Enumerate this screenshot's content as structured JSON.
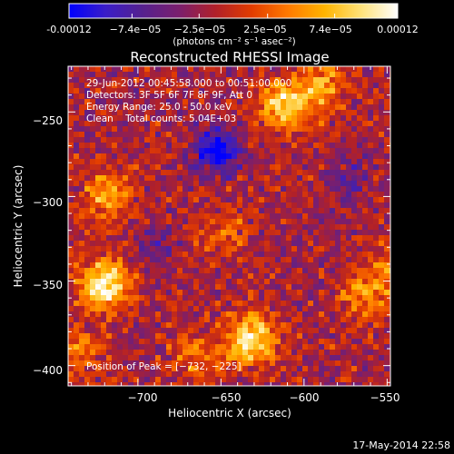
{
  "colorbar": {
    "tick_labels": [
      "-0.00012",
      "−7.4e−05",
      "−2.5e−05",
      "2.5e−05",
      "7.4e−05",
      "0.00012"
    ],
    "tick_values": [
      -0.00012,
      -7.4e-05,
      -2.5e-05,
      2.5e-05,
      7.4e-05,
      0.00012
    ],
    "range": [
      -0.00012,
      0.00012
    ],
    "units_label": "(photons cm⁻² s⁻¹ asec⁻²)",
    "colors": [
      "#0000ff",
      "#3a1dc8",
      "#55218f",
      "#7a1f6e",
      "#b0202a",
      "#e23c00",
      "#ff7a00",
      "#ffb400",
      "#ffe27a",
      "#ffffff"
    ]
  },
  "chart_data": {
    "type": "heatmap",
    "title": "Reconstructed RHESSI Image",
    "xlabel": "Heliocentric X (arcsec)",
    "ylabel": "Heliocentric Y (arcsec)",
    "xlim": [
      -742,
      -548
    ],
    "ylim": [
      -412,
      -223
    ],
    "x_ticks": [
      -700,
      -650,
      -600,
      -550
    ],
    "x_tick_labels": [
      "−700",
      "−650",
      "−600",
      "−550"
    ],
    "y_ticks": [
      -250,
      -300,
      -350,
      -400
    ],
    "y_tick_labels": [
      "−250",
      "−300",
      "−350",
      "−400"
    ],
    "grid": false,
    "hot_spots": [
      {
        "x": -720,
        "y": -352,
        "level": 1.0
      },
      {
        "x": -632,
        "y": -385,
        "level": 0.9
      },
      {
        "x": -612,
        "y": -246,
        "level": 0.85
      },
      {
        "x": -590,
        "y": -234,
        "level": 0.55
      },
      {
        "x": -718,
        "y": -300,
        "level": 0.55
      },
      {
        "x": -565,
        "y": -360,
        "level": 0.45
      },
      {
        "x": -548,
        "y": -345,
        "level": 0.45
      },
      {
        "x": -735,
        "y": -392,
        "level": 0.4
      },
      {
        "x": -648,
        "y": -322,
        "level": 0.3
      },
      {
        "x": -665,
        "y": -395,
        "level": 0.35
      }
    ],
    "cold_spots": [
      {
        "x": -652,
        "y": -272,
        "level": 1.0
      },
      {
        "x": -575,
        "y": -290,
        "level": 0.35
      },
      {
        "x": -690,
        "y": -330,
        "level": 0.3
      }
    ],
    "annotations": [
      "29-Jun-2012 00:45:58.000 to 00:51:00.000",
      "Detectors: 3F 5F 6F 7F 8F 9F, Att 0",
      "Energy Range: 25.0 - 50.0 keV",
      "Clean    Total counts: 5.04E+03",
      "Position of Peak = [−732, −225]"
    ]
  },
  "footer": {
    "timestamp": "17-May-2014 22:58"
  }
}
